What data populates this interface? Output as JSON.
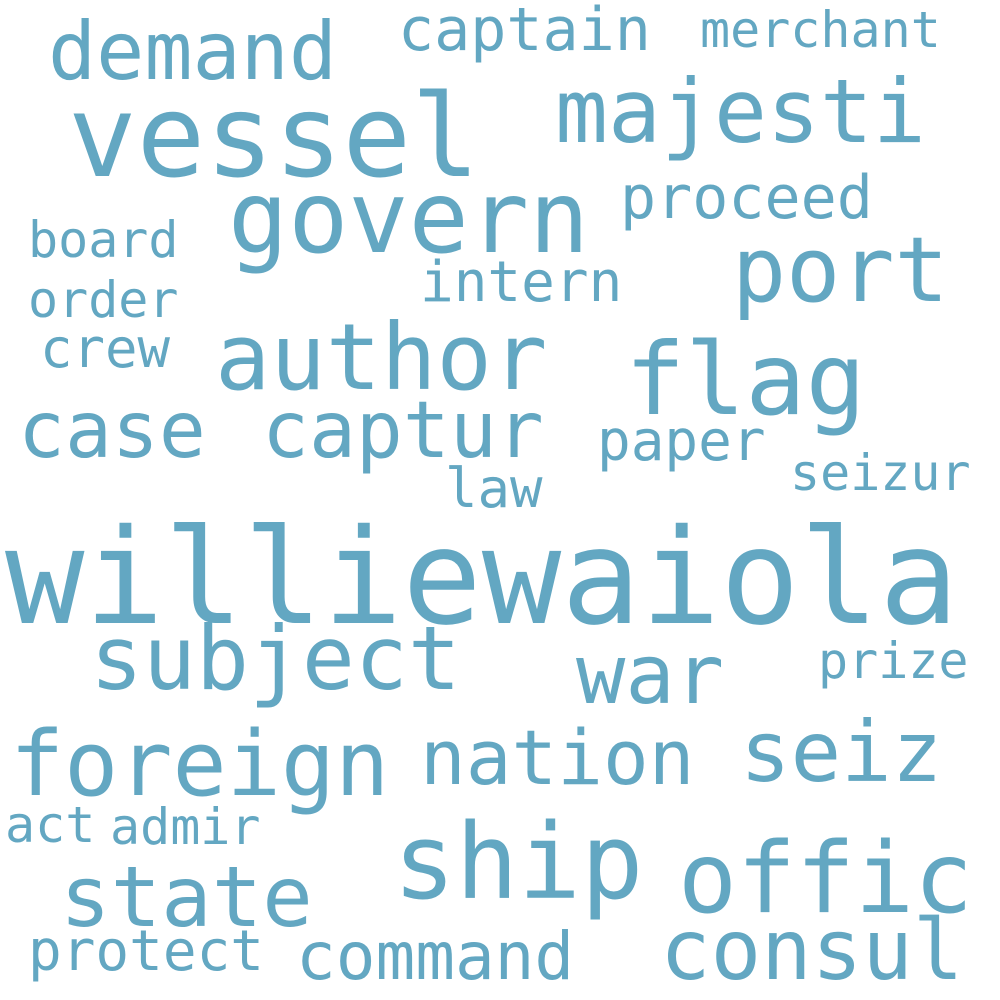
{
  "colors": {
    "background": "#ffffff",
    "word": "#63a7c2"
  },
  "words": [
    {
      "text": "williewaiola"
    },
    {
      "text": "vessel"
    },
    {
      "text": "govern"
    },
    {
      "text": "majesti"
    },
    {
      "text": "demand"
    },
    {
      "text": "captain"
    },
    {
      "text": "merchant"
    },
    {
      "text": "proceed"
    },
    {
      "text": "board"
    },
    {
      "text": "port"
    },
    {
      "text": "intern"
    },
    {
      "text": "order"
    },
    {
      "text": "author"
    },
    {
      "text": "crew"
    },
    {
      "text": "flag"
    },
    {
      "text": "case"
    },
    {
      "text": "captur"
    },
    {
      "text": "paper"
    },
    {
      "text": "law"
    },
    {
      "text": "seizur"
    },
    {
      "text": "subject"
    },
    {
      "text": "war"
    },
    {
      "text": "prize"
    },
    {
      "text": "foreign"
    },
    {
      "text": "nation"
    },
    {
      "text": "seiz"
    },
    {
      "text": "act"
    },
    {
      "text": "admir"
    },
    {
      "text": "ship"
    },
    {
      "text": "offic"
    },
    {
      "text": "state"
    },
    {
      "text": "protect"
    },
    {
      "text": "command"
    },
    {
      "text": "consul"
    }
  ]
}
